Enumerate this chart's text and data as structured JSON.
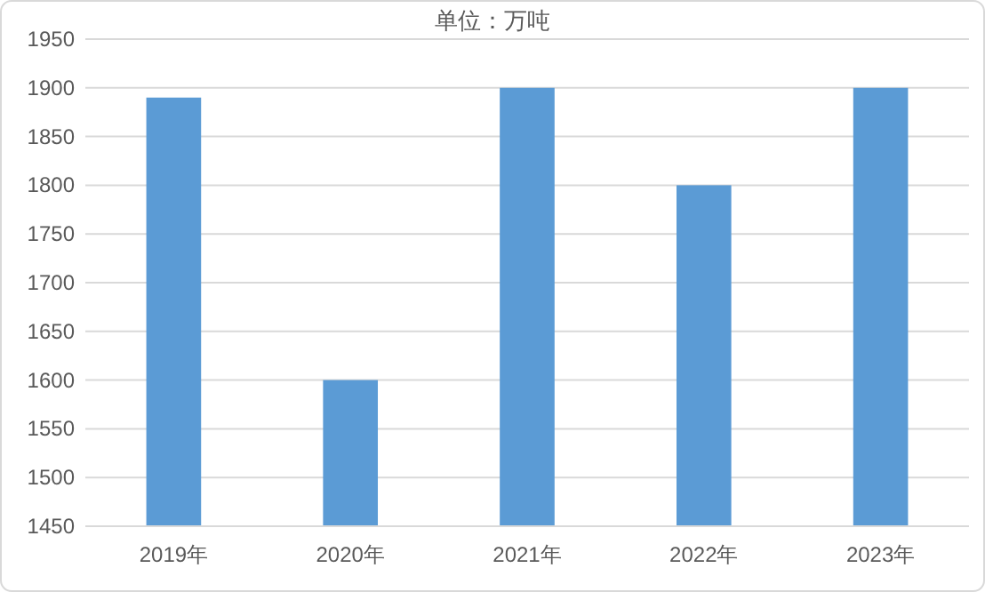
{
  "chart_data": {
    "type": "bar",
    "title": "单位：万吨",
    "categories": [
      "2019年",
      "2020年",
      "2021年",
      "2022年",
      "2023年"
    ],
    "values": [
      1890,
      1600,
      1900,
      1800,
      1900
    ],
    "color": "#5b9bd5",
    "ylim": [
      1450,
      1950
    ],
    "yticks": [
      1450,
      1500,
      1550,
      1600,
      1650,
      1700,
      1750,
      1800,
      1850,
      1900,
      1950
    ],
    "grid": "y"
  }
}
